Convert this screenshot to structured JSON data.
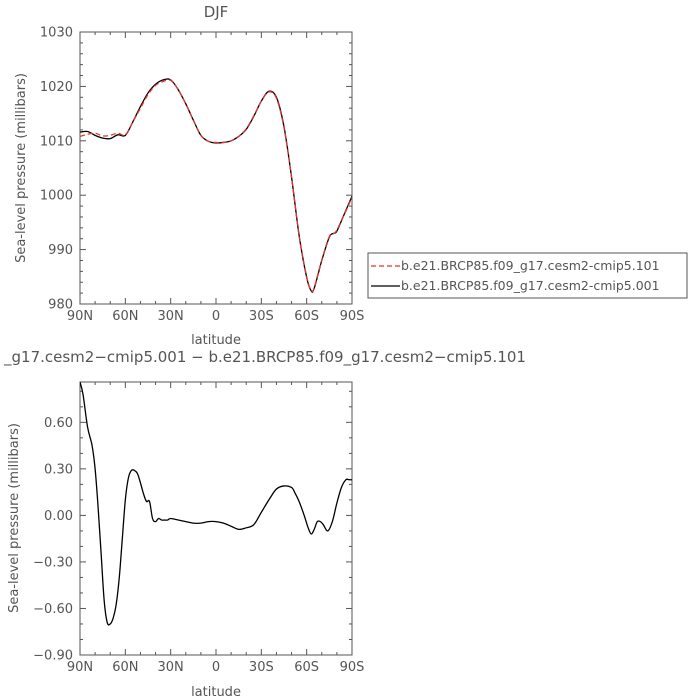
{
  "chart_data": [
    {
      "type": "line",
      "title": "DJF",
      "xlabel": "latitude",
      "ylabel": "Sea-level pressure (millibars)",
      "xlim": [
        90,
        -90
      ],
      "ylim": [
        980,
        1030
      ],
      "x_ticks": [
        {
          "value": 90,
          "label": "90N"
        },
        {
          "value": 60,
          "label": "60N"
        },
        {
          "value": 30,
          "label": "30N"
        },
        {
          "value": 0,
          "label": "0"
        },
        {
          "value": -30,
          "label": "30S"
        },
        {
          "value": -60,
          "label": "60S"
        },
        {
          "value": -90,
          "label": "90S"
        }
      ],
      "y_ticks": [
        {
          "value": 980,
          "label": "980"
        },
        {
          "value": 990,
          "label": "990"
        },
        {
          "value": 1000,
          "label": "1000"
        },
        {
          "value": 1010,
          "label": "1010"
        },
        {
          "value": 1020,
          "label": "1020"
        },
        {
          "value": 1030,
          "label": "1030"
        }
      ],
      "legend_position": "right",
      "series": [
        {
          "name": "b.e21.BRCP85.f09_g17.cesm2-cmip5.101",
          "color": "#e8322e",
          "style": "dashed",
          "x": [
            90,
            85,
            80,
            75,
            70,
            65,
            60,
            55,
            50,
            45,
            40,
            35,
            30,
            25,
            20,
            15,
            10,
            5,
            0,
            -5,
            -10,
            -15,
            -20,
            -25,
            -30,
            -35,
            -40,
            -45,
            -50,
            -55,
            -60,
            -63,
            -65,
            -70,
            -75,
            -78,
            -80,
            -85,
            -90
          ],
          "y": [
            1010.8,
            1011.2,
            1011.4,
            1010.9,
            1011.0,
            1011.4,
            1011.1,
            1013.5,
            1016.0,
            1018.5,
            1020.2,
            1020.9,
            1021.1,
            1019.4,
            1016.8,
            1013.8,
            1011.0,
            1009.9,
            1009.7,
            1009.7,
            1010.0,
            1010.8,
            1012.2,
            1014.6,
            1017.3,
            1019.0,
            1017.8,
            1012.4,
            1003.3,
            992.6,
            985.0,
            982.5,
            983.0,
            988.1,
            992.4,
            993.0,
            993.6,
            996.5,
            999.6
          ]
        },
        {
          "name": "b.e21.BRCP85.f09_g17.cesm2-cmip5.001",
          "color": "#000000",
          "style": "solid",
          "x": [
            90,
            85,
            80,
            75,
            70,
            65,
            60,
            55,
            50,
            45,
            40,
            35,
            30,
            25,
            20,
            15,
            10,
            5,
            0,
            -5,
            -10,
            -15,
            -20,
            -25,
            -30,
            -35,
            -40,
            -45,
            -50,
            -55,
            -60,
            -63,
            -65,
            -70,
            -75,
            -78,
            -80,
            -85,
            -90
          ],
          "y": [
            1011.6,
            1011.7,
            1011.0,
            1010.5,
            1010.4,
            1011.1,
            1011.0,
            1013.5,
            1016.3,
            1018.8,
            1020.4,
            1021.2,
            1021.2,
            1019.4,
            1016.8,
            1013.8,
            1011.0,
            1009.9,
            1009.6,
            1009.7,
            1010.0,
            1010.8,
            1012.1,
            1014.5,
            1017.3,
            1019.1,
            1018.0,
            1012.6,
            1003.3,
            992.6,
            984.9,
            982.4,
            982.9,
            988.0,
            992.3,
            993.0,
            993.4,
            996.6,
            999.8
          ]
        }
      ]
    },
    {
      "type": "line",
      "title": "_g17.cesm2−cmip5.001 − b.e21.BRCP85.f09_g17.cesm2−cmip5.101",
      "xlabel": "latitude",
      "ylabel": "Sea-level pressure (millibars)",
      "xlim": [
        90,
        -90
      ],
      "ylim": [
        -0.9,
        0.86
      ],
      "x_ticks": [
        {
          "value": 90,
          "label": "90N"
        },
        {
          "value": 60,
          "label": "60N"
        },
        {
          "value": 30,
          "label": "30N"
        },
        {
          "value": 0,
          "label": "0"
        },
        {
          "value": -30,
          "label": "30S"
        },
        {
          "value": -60,
          "label": "60S"
        },
        {
          "value": -90,
          "label": "90S"
        }
      ],
      "y_ticks": [
        {
          "value": -0.9,
          "label": "−0.90"
        },
        {
          "value": -0.6,
          "label": "−0.60"
        },
        {
          "value": -0.3,
          "label": "−0.30"
        },
        {
          "value": 0.0,
          "label": "0.00"
        },
        {
          "value": 0.3,
          "label": "0.30"
        },
        {
          "value": 0.6,
          "label": "0.60"
        }
      ],
      "series": [
        {
          "color": "#000000",
          "style": "solid",
          "x": [
            90,
            88,
            85,
            82,
            80,
            78,
            76,
            74,
            72,
            70,
            68,
            66,
            64,
            62,
            60,
            58,
            56,
            54,
            52,
            50,
            48,
            46,
            44,
            42,
            40,
            38,
            36,
            34,
            32,
            30,
            25,
            20,
            15,
            10,
            5,
            0,
            -5,
            -10,
            -15,
            -20,
            -25,
            -30,
            -35,
            -40,
            -45,
            -50,
            -52,
            -55,
            -58,
            -61,
            -63,
            -65,
            -67,
            -69,
            -71,
            -74,
            -77,
            -80,
            -83,
            -86,
            -88,
            -90
          ],
          "y": [
            0.86,
            0.78,
            0.57,
            0.45,
            0.3,
            0.05,
            -0.25,
            -0.55,
            -0.69,
            -0.7,
            -0.66,
            -0.57,
            -0.4,
            -0.15,
            0.1,
            0.24,
            0.29,
            0.29,
            0.27,
            0.21,
            0.14,
            0.09,
            0.09,
            -0.02,
            -0.04,
            -0.02,
            -0.03,
            -0.03,
            -0.03,
            -0.02,
            -0.03,
            -0.04,
            -0.05,
            -0.05,
            -0.04,
            -0.04,
            -0.05,
            -0.07,
            -0.09,
            -0.08,
            -0.06,
            0.02,
            0.1,
            0.17,
            0.19,
            0.18,
            0.15,
            0.09,
            0.01,
            -0.08,
            -0.12,
            -0.09,
            -0.04,
            -0.04,
            -0.06,
            -0.1,
            -0.04,
            0.08,
            0.18,
            0.23,
            0.23,
            0.23
          ]
        }
      ]
    }
  ]
}
